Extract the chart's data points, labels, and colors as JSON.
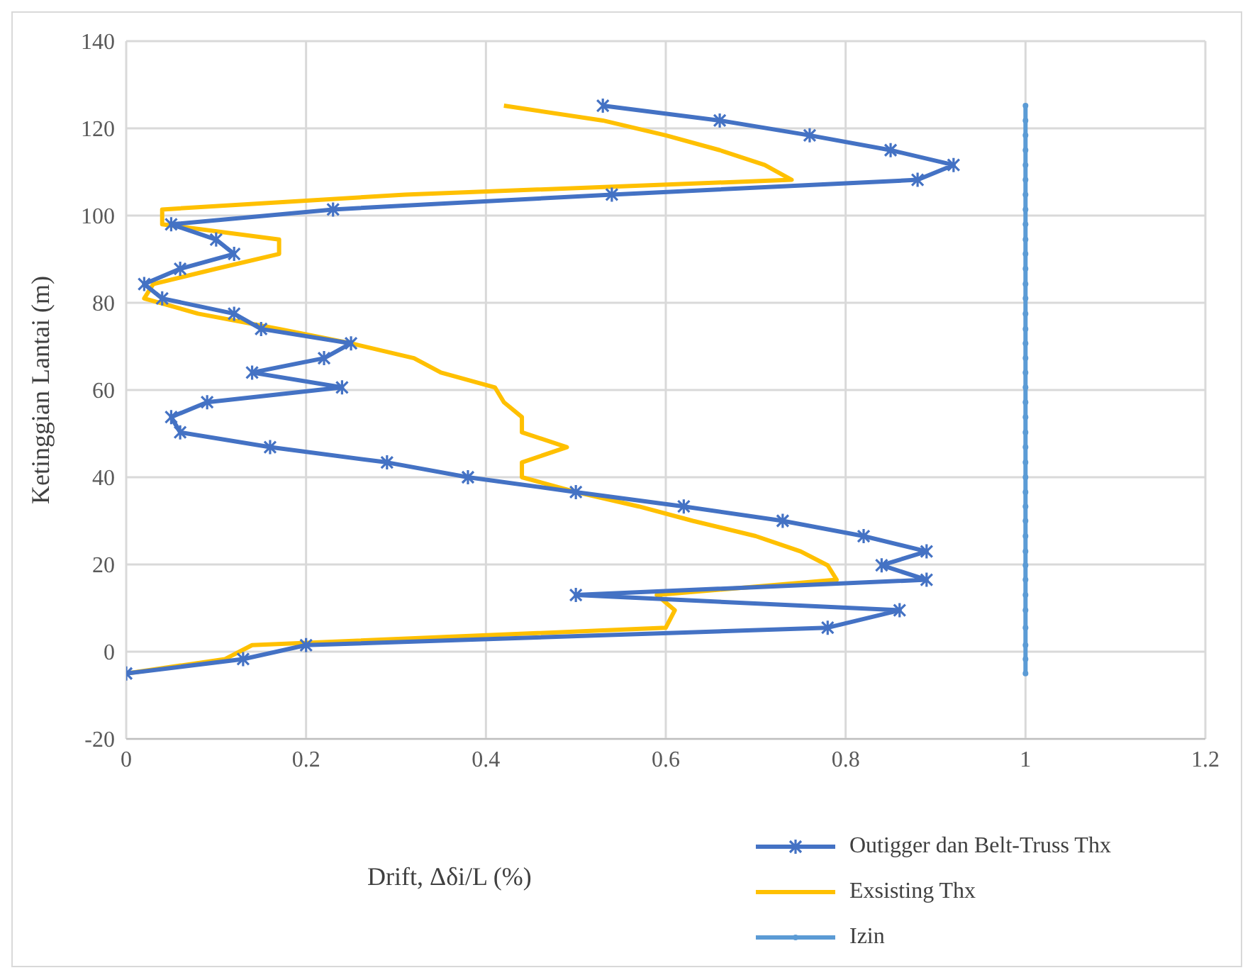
{
  "chart_data": {
    "type": "line",
    "xlabel": "Drift, Δδi/L (%)",
    "ylabel": "Ketinggian Lantai (m)",
    "xlim": [
      0,
      1.2
    ],
    "xticks": [
      0,
      0.2,
      0.4,
      0.6,
      0.8,
      1,
      1.2
    ],
    "ylim": [
      -20,
      140
    ],
    "yticks": [
      -20,
      0,
      20,
      40,
      60,
      80,
      100,
      120,
      140
    ],
    "grid": true,
    "legend": "bottom right",
    "line_style": "solid",
    "series": [
      {
        "name": "Outigger dan Belt-Truss Thx",
        "color": "#4472c4",
        "marker": "cross",
        "x": [
          0,
          0.13,
          0.2,
          0.78,
          0.86,
          0.5,
          0.89,
          0.84,
          0.89,
          0.82,
          0.73,
          0.62,
          0.5,
          0.38,
          0.29,
          0.16,
          0.06,
          0.05,
          0.09,
          0.24,
          0.14,
          0.22,
          0.25,
          0.15,
          0.12,
          0.04,
          0.02,
          0.06,
          0.12,
          0.1,
          0.05,
          0.23,
          0.54,
          0.88,
          0.92,
          0.85,
          0.76,
          0.66,
          0.53
        ],
        "values": [
          -5,
          -1.7,
          1.5,
          5.5,
          9.5,
          13,
          16.5,
          19.8,
          23,
          26.5,
          30,
          33.3,
          36.6,
          40,
          43.4,
          46.9,
          50.3,
          53.8,
          57.2,
          60.6,
          64,
          67.3,
          70.7,
          74,
          77.5,
          81,
          84.3,
          87.8,
          91.2,
          94.5,
          98,
          101.4,
          104.8,
          108.2,
          111.6,
          115,
          118.4,
          121.8,
          125.2
        ]
      },
      {
        "name": "Exsisting Thx",
        "color": "#ffc000",
        "marker": "none",
        "x": [
          0,
          0.11,
          0.14,
          0.6,
          0.61,
          0.59,
          0.79,
          0.78,
          0.75,
          0.7,
          0.63,
          0.57,
          0.5,
          0.44,
          0.44,
          0.49,
          0.44,
          0.44,
          0.42,
          0.41,
          0.35,
          0.32,
          0.25,
          0.17,
          0.08,
          0.02,
          0.03,
          0.1,
          0.17,
          0.17,
          0.04,
          0.04,
          0.31,
          0.74,
          0.71,
          0.66,
          0.6,
          0.53,
          0.42
        ],
        "values": [
          -5,
          -1.7,
          1.5,
          5.5,
          9.5,
          13,
          16.5,
          19.8,
          23,
          26.5,
          30,
          33.3,
          36.6,
          40,
          43.4,
          46.9,
          50.3,
          53.8,
          57.2,
          60.6,
          64,
          67.3,
          70.7,
          74,
          77.5,
          81,
          84.3,
          87.8,
          91.2,
          94.5,
          98,
          101.4,
          104.8,
          108.2,
          111.6,
          115,
          118.4,
          121.8,
          125.2
        ]
      },
      {
        "name": "Izin",
        "color": "#5b9bd5",
        "marker": "circle",
        "x": [
          1,
          1,
          1,
          1,
          1,
          1,
          1,
          1,
          1,
          1,
          1,
          1,
          1,
          1,
          1,
          1,
          1,
          1,
          1,
          1,
          1,
          1,
          1,
          1,
          1,
          1,
          1,
          1,
          1,
          1,
          1,
          1,
          1,
          1,
          1,
          1,
          1,
          1,
          1
        ],
        "values": [
          -5,
          -1.7,
          1.5,
          5.5,
          9.5,
          13,
          16.5,
          19.8,
          23,
          26.5,
          30,
          33.3,
          36.6,
          40,
          43.4,
          46.9,
          50.3,
          53.8,
          57.2,
          60.6,
          64,
          67.3,
          70.7,
          74,
          77.5,
          81,
          84.3,
          87.8,
          91.2,
          94.5,
          98,
          101.4,
          104.8,
          108.2,
          111.6,
          115,
          118.4,
          121.8,
          125.2
        ]
      }
    ]
  }
}
